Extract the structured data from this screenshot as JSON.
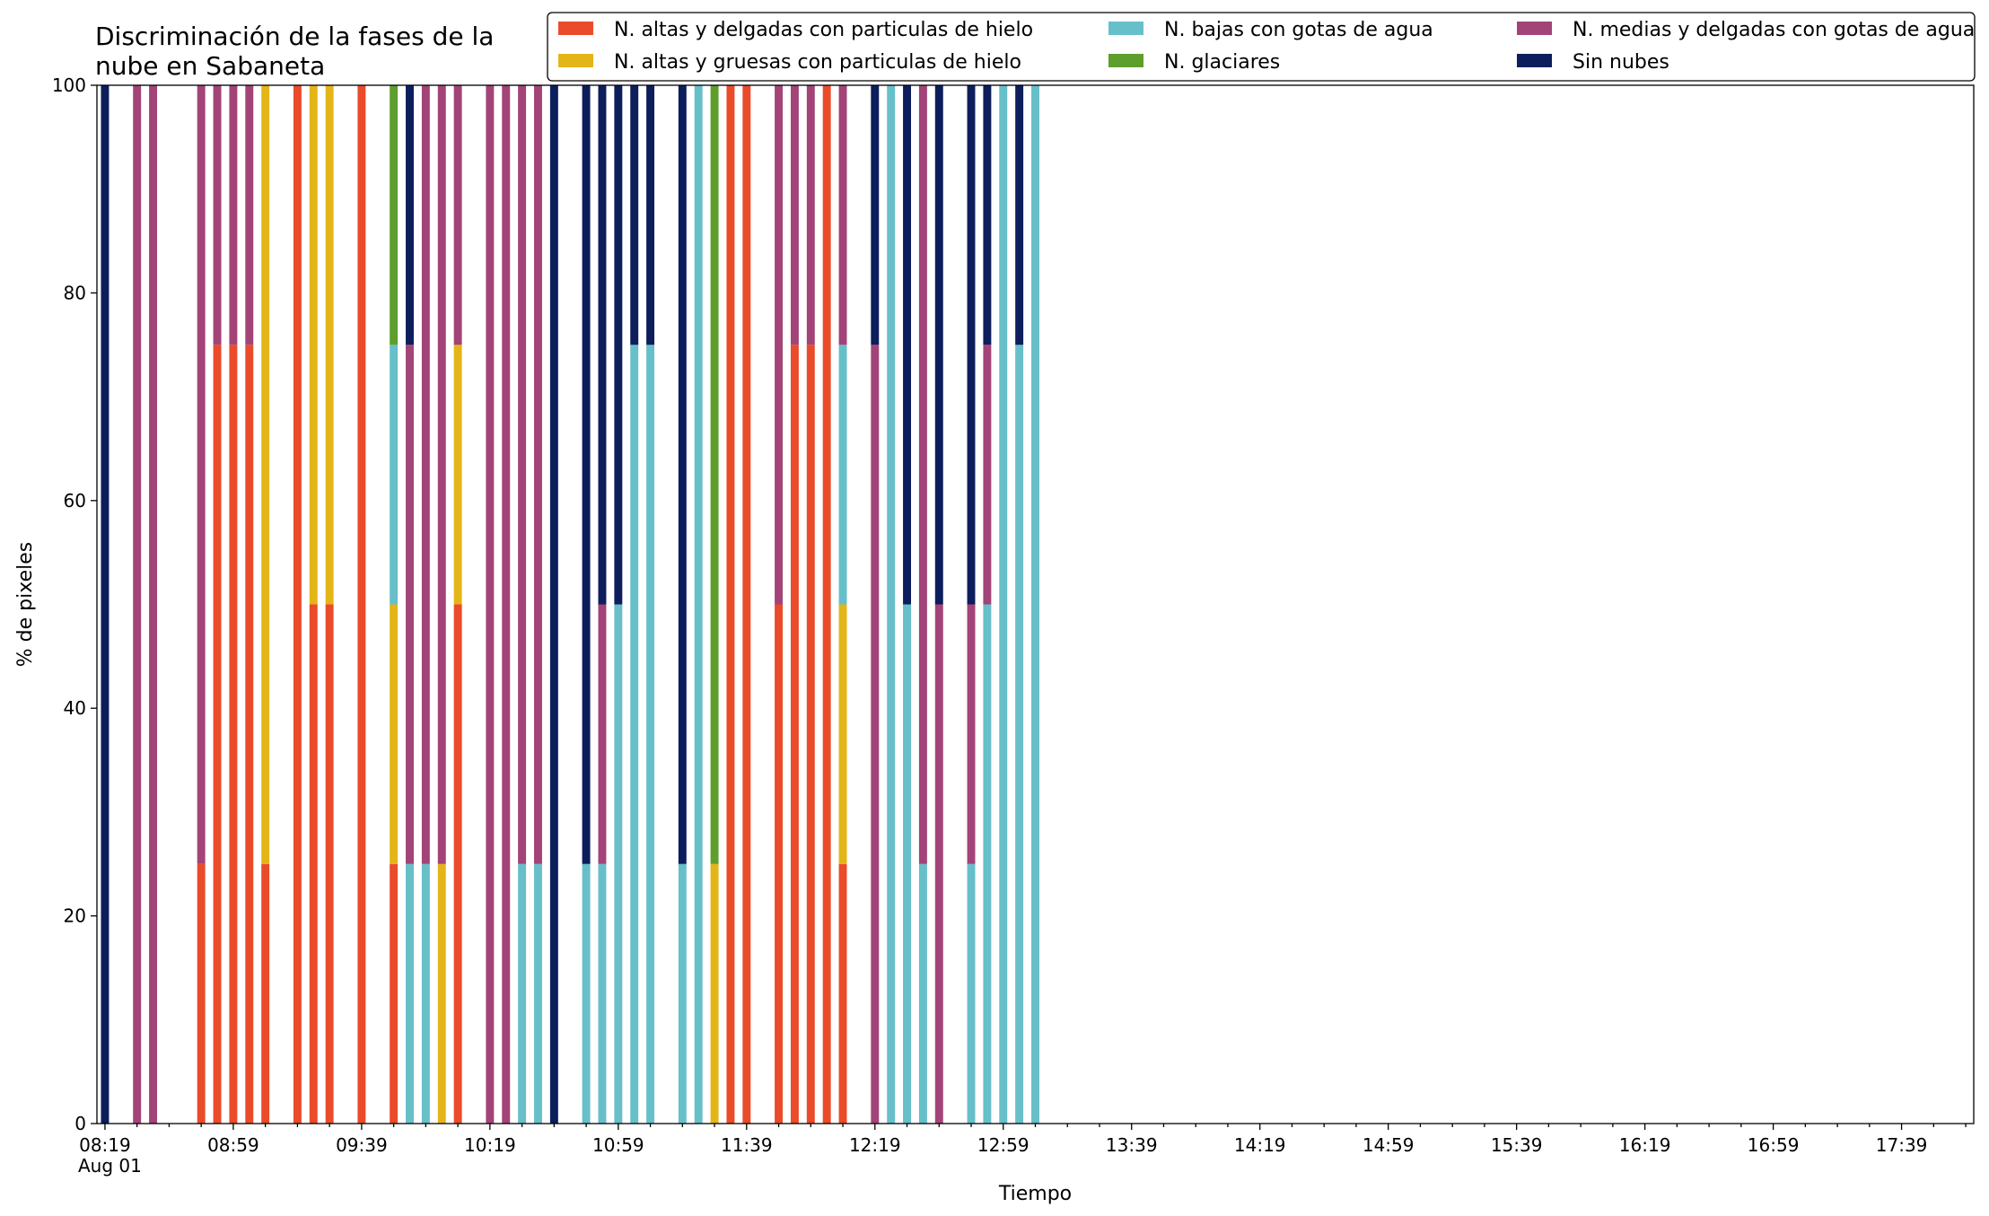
{
  "chart_data": {
    "type": "bar",
    "stacked": true,
    "title": "Discriminación de la fases de la\nnube en Sabaneta",
    "xlabel": "Tiempo",
    "ylabel": "% de pixeles",
    "ylim": [
      0,
      100
    ],
    "yticks": [
      0,
      20,
      40,
      60,
      80,
      100
    ],
    "x_tick_labels": [
      "08:19\nAug 01",
      "08:59",
      "09:39",
      "10:19",
      "10:59",
      "11:39",
      "12:19",
      "12:59",
      "13:39",
      "14:19",
      "14:59",
      "15:39",
      "16:19",
      "16:59",
      "17:39"
    ],
    "legend_position": "top-right",
    "legend_columns": 3,
    "grid": false,
    "series": [
      {
        "name": "N. altas y delgadas con particulas de hielo",
        "color": "#ea4b2b"
      },
      {
        "name": "N. altas y gruesas con particulas de hielo",
        "color": "#e4b517"
      },
      {
        "name": "N. bajas con gotas de agua",
        "color": "#67bfca"
      },
      {
        "name": "N. glaciares",
        "color": "#5d9e2d"
      },
      {
        "name": "N. medias y delgadas con gotas de agua",
        "color": "#a24478"
      },
      {
        "name": "Sin nubes",
        "color": "#0c1e5b"
      }
    ],
    "categories": [
      "08:19",
      "08:24",
      "08:29",
      "08:34",
      "08:39",
      "08:44",
      "08:49",
      "08:54",
      "08:59",
      "09:04",
      "09:09",
      "09:14",
      "09:19",
      "09:24",
      "09:29",
      "09:34",
      "09:39",
      "09:44",
      "09:49",
      "09:54",
      "09:59",
      "10:04",
      "10:09",
      "10:14",
      "10:19",
      "10:24",
      "10:29",
      "10:34",
      "10:39",
      "10:44",
      "10:49",
      "10:54",
      "10:59",
      "11:04",
      "11:09",
      "11:14",
      "11:19",
      "11:24",
      "11:29",
      "11:34",
      "11:39",
      "11:44",
      "11:49",
      "11:54",
      "11:59",
      "12:04",
      "12:09",
      "12:14",
      "12:19",
      "12:24",
      "12:29",
      "12:34",
      "12:39",
      "12:44",
      "12:49",
      "12:54",
      "12:59",
      "13:04",
      "13:09",
      "13:14",
      "13:19",
      "13:24",
      "13:29",
      "13:34",
      "13:39",
      "13:44",
      "13:49",
      "13:54",
      "13:59",
      "14:04",
      "14:09",
      "14:14",
      "14:19",
      "14:24",
      "14:29",
      "14:34",
      "14:39",
      "14:44",
      "14:49",
      "14:54",
      "14:59",
      "15:04",
      "15:09",
      "15:14",
      "15:19",
      "15:24",
      "15:29",
      "15:34",
      "15:39",
      "15:44",
      "15:49",
      "15:54",
      "15:59",
      "16:04",
      "16:09",
      "16:14",
      "16:19",
      "16:24",
      "16:29",
      "16:34",
      "16:39",
      "16:44",
      "16:49",
      "16:54",
      "16:59",
      "17:04",
      "17:09",
      "17:14",
      "17:19",
      "17:24",
      "17:29",
      "17:34",
      "17:39",
      "17:44",
      "17:49",
      "17:54",
      "17:59"
    ],
    "bars": [
      {
        "time": "08:19",
        "values": [
          0,
          0,
          0,
          0,
          0,
          100
        ]
      },
      {
        "time": "08:29",
        "values": [
          0,
          0,
          0,
          0,
          100,
          0
        ]
      },
      {
        "time": "08:34",
        "values": [
          0,
          0,
          0,
          0,
          100,
          0
        ]
      },
      {
        "time": "08:49",
        "values": [
          25,
          0,
          0,
          0,
          75,
          0
        ]
      },
      {
        "time": "08:54",
        "values": [
          75,
          0,
          0,
          0,
          25,
          0
        ]
      },
      {
        "time": "08:59",
        "values": [
          75,
          0,
          0,
          0,
          25,
          0
        ]
      },
      {
        "time": "09:04",
        "values": [
          75,
          0,
          0,
          0,
          25,
          0
        ]
      },
      {
        "time": "09:09",
        "values": [
          25,
          75,
          0,
          0,
          0,
          0
        ]
      },
      {
        "time": "09:19",
        "values": [
          100,
          0,
          0,
          0,
          0,
          0
        ]
      },
      {
        "time": "09:24",
        "values": [
          50,
          50,
          0,
          0,
          0,
          0
        ]
      },
      {
        "time": "09:29",
        "values": [
          50,
          50,
          0,
          0,
          0,
          0
        ]
      },
      {
        "time": "09:39",
        "values": [
          100,
          0,
          0,
          0,
          0,
          0
        ]
      },
      {
        "time": "09:49",
        "values": [
          25,
          25,
          25,
          25,
          0,
          0
        ]
      },
      {
        "time": "09:54",
        "values": [
          0,
          0,
          25,
          0,
          50,
          25
        ]
      },
      {
        "time": "09:59",
        "values": [
          0,
          0,
          25,
          0,
          75,
          0
        ]
      },
      {
        "time": "10:04",
        "values": [
          0,
          25,
          0,
          0,
          75,
          0
        ]
      },
      {
        "time": "10:09",
        "values": [
          50,
          25,
          0,
          0,
          25,
          0
        ]
      },
      {
        "time": "10:19",
        "values": [
          0,
          0,
          0,
          0,
          100,
          0
        ]
      },
      {
        "time": "10:24",
        "values": [
          0,
          0,
          0,
          0,
          100,
          0
        ]
      },
      {
        "time": "10:29",
        "values": [
          0,
          0,
          25,
          0,
          75,
          0
        ]
      },
      {
        "time": "10:34",
        "values": [
          0,
          0,
          25,
          0,
          75,
          0
        ]
      },
      {
        "time": "10:39",
        "values": [
          0,
          0,
          0,
          0,
          0,
          100
        ]
      },
      {
        "time": "10:49",
        "values": [
          0,
          0,
          25,
          0,
          0,
          75
        ]
      },
      {
        "time": "10:54",
        "values": [
          0,
          0,
          25,
          0,
          25,
          50
        ]
      },
      {
        "time": "10:59",
        "values": [
          0,
          0,
          50,
          0,
          0,
          50
        ]
      },
      {
        "time": "11:04",
        "values": [
          0,
          0,
          75,
          0,
          0,
          25
        ]
      },
      {
        "time": "11:09",
        "values": [
          0,
          0,
          75,
          0,
          0,
          25
        ]
      },
      {
        "time": "11:19",
        "values": [
          0,
          0,
          25,
          0,
          0,
          75
        ]
      },
      {
        "time": "11:24",
        "values": [
          0,
          0,
          100,
          0,
          0,
          0
        ]
      },
      {
        "time": "11:29",
        "values": [
          0,
          25,
          0,
          75,
          0,
          0
        ]
      },
      {
        "time": "11:34",
        "values": [
          100,
          0,
          0,
          0,
          0,
          0
        ]
      },
      {
        "time": "11:39",
        "values": [
          100,
          0,
          0,
          0,
          0,
          0
        ]
      },
      {
        "time": "11:49",
        "values": [
          50,
          0,
          0,
          0,
          50,
          0
        ]
      },
      {
        "time": "11:54",
        "values": [
          75,
          0,
          0,
          0,
          25,
          0
        ]
      },
      {
        "time": "11:59",
        "values": [
          75,
          0,
          0,
          0,
          25,
          0
        ]
      },
      {
        "time": "12:04",
        "values": [
          100,
          0,
          0,
          0,
          0,
          0
        ]
      },
      {
        "time": "12:09",
        "values": [
          25,
          25,
          25,
          0,
          25,
          0
        ]
      },
      {
        "time": "12:19",
        "values": [
          0,
          0,
          0,
          0,
          75,
          25
        ]
      },
      {
        "time": "12:24",
        "values": [
          0,
          0,
          100,
          0,
          0,
          0
        ]
      },
      {
        "time": "12:29",
        "values": [
          0,
          0,
          50,
          0,
          0,
          50
        ]
      },
      {
        "time": "12:34",
        "values": [
          0,
          0,
          25,
          0,
          75,
          0
        ]
      },
      {
        "time": "12:39",
        "values": [
          0,
          0,
          0,
          0,
          50,
          50
        ]
      },
      {
        "time": "12:49",
        "values": [
          0,
          0,
          25,
          0,
          25,
          50
        ]
      },
      {
        "time": "12:54",
        "values": [
          0,
          0,
          50,
          0,
          25,
          25
        ]
      },
      {
        "time": "12:59",
        "values": [
          0,
          0,
          100,
          0,
          0,
          0
        ]
      },
      {
        "time": "13:04",
        "values": [
          0,
          0,
          75,
          0,
          0,
          25
        ]
      },
      {
        "time": "13:09",
        "values": [
          0,
          0,
          100,
          0,
          0,
          0
        ]
      }
    ]
  }
}
